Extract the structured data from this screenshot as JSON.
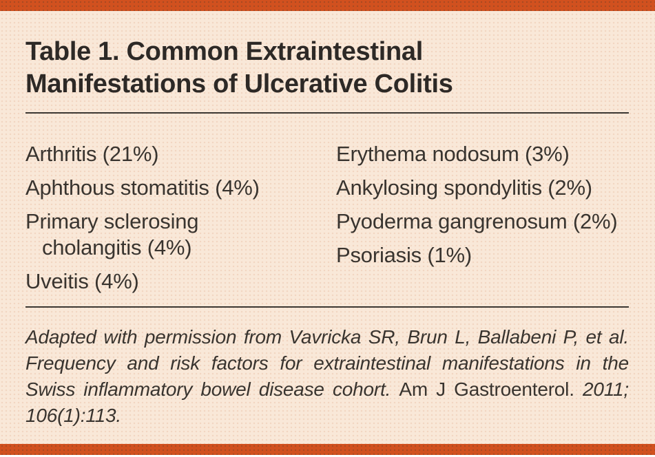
{
  "figure": {
    "title": {
      "line1": "Table 1. Common Extraintestinal",
      "line2": "Manifestations of Ulcerative Colitis"
    },
    "entries": {
      "left": [
        {
          "line1": "Arthritis (21%)"
        },
        {
          "line1": "Aphthous stomatitis (4%)"
        },
        {
          "line1": "Primary sclerosing",
          "line2": "cholangitis (4%)"
        },
        {
          "line1": "Uveitis (4%)"
        }
      ],
      "right": [
        {
          "line1": "Erythema nodosum (3%)"
        },
        {
          "line1": "Ankylosing spondylitis (2%)"
        },
        {
          "line1": "Pyoderma gangrenosum (2%)"
        },
        {
          "line1": "Psoriasis (1%)"
        }
      ]
    },
    "footnote": {
      "italic_lead": "Adapted with permission from Vavricka SR, Brun L, Ballabeni P, et al. Frequency and risk factors for extraintestinal manifestations in the Swiss inflammatory bowel disease cohort.",
      "journal_roman": "Am J Gastroenterol.",
      "italic_tail": "2011; 106(1):113."
    },
    "colors": {
      "accent_orange": "#d1511f",
      "paper_cream": "#f9e8d8",
      "ink": "#39342f"
    }
  }
}
